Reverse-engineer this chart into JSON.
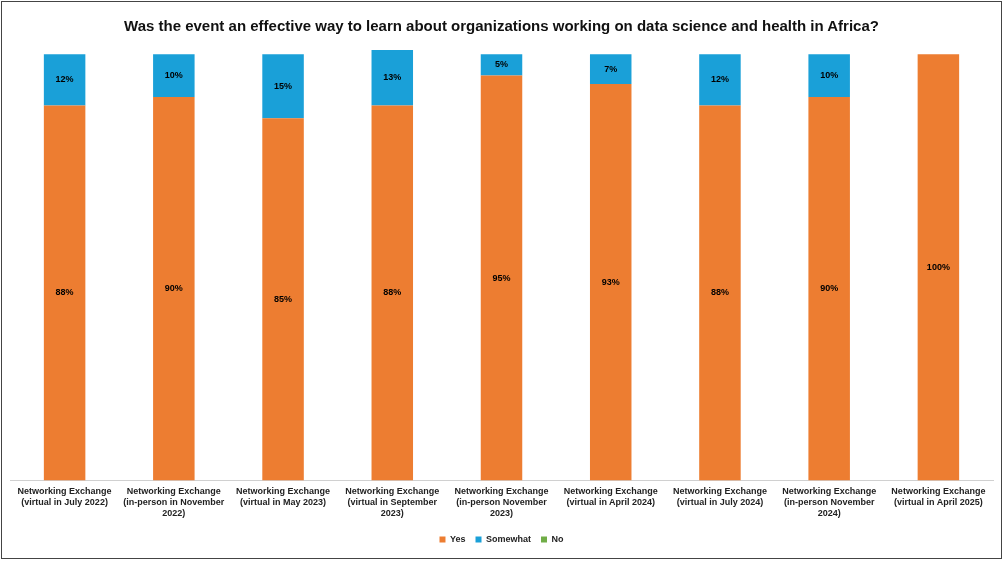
{
  "chart_data": {
    "type": "bar",
    "title": "Was the event an effective way to learn about organizations working on data science and health in Africa?",
    "categories": [
      "Networking Exchange (virtual in July 2022)",
      "Networking Exchange (in-person in November 2022)",
      "Networking Exchange (virtual in May 2023)",
      "Networking Exchange (virtual in September 2023)",
      "Networking Exchange (in-person November 2023)",
      "Networking Exchange (virtual in April 2024)",
      "Networking Exchange (virtual in July 2024)",
      "Networking Exchange (in-person November 2024)",
      "Networking Exchange (virtual in April 2025)"
    ],
    "stacked": true,
    "ylim": [
      0,
      101
    ],
    "tick_labels": "x",
    "grid": false,
    "legend": "bottom",
    "series": [
      {
        "name": "Yes",
        "color": "#ed7d31",
        "values": [
          88,
          90,
          85,
          88,
          95,
          93,
          88,
          90,
          100
        ],
        "value_labels": [
          "88%",
          "90%",
          "85%",
          "88%",
          "95%",
          "93%",
          "88%",
          "90%",
          "100%"
        ]
      },
      {
        "name": "Somewhat",
        "color": "#1aa0d8",
        "values": [
          12,
          10,
          15,
          13,
          5,
          7,
          12,
          10,
          0
        ],
        "value_labels": [
          "12%",
          "10%",
          "15%",
          "13%",
          "5%",
          "7%",
          "12%",
          "10%",
          null
        ]
      },
      {
        "name": "No",
        "color": "#70ad47",
        "values": [
          0,
          0,
          0,
          0,
          0,
          0,
          0,
          0,
          0
        ]
      }
    ]
  }
}
